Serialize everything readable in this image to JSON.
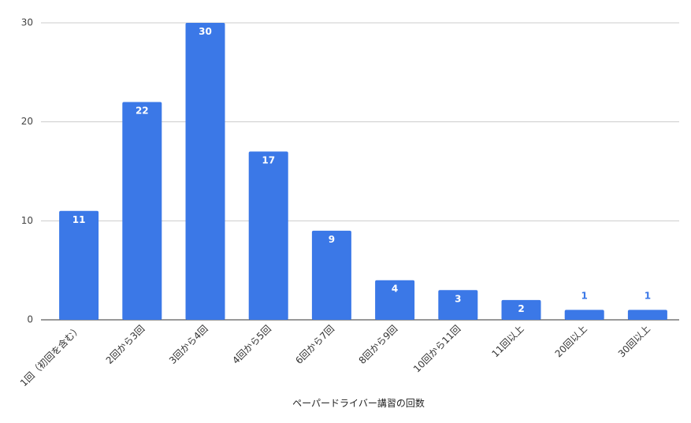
{
  "chart_data": {
    "type": "bar",
    "categories": [
      "1回（初回を含む）",
      "2回から3回",
      "3回から4回",
      "4回から5回",
      "6回から7回",
      "8回から9回",
      "10回から11回",
      "11回以上",
      "20回以上",
      "30回以上"
    ],
    "values": [
      11,
      22,
      30,
      17,
      9,
      4,
      3,
      2,
      1,
      1
    ],
    "data_labels": [
      "11",
      "22",
      "30",
      "17",
      "9",
      "4",
      "3",
      "2",
      "1",
      "1"
    ],
    "title": "",
    "xlabel": "ペーパードライバー講習の回数",
    "ylabel": "",
    "ylim": [
      0,
      30
    ],
    "yticks": [
      0,
      10,
      20,
      30
    ],
    "ytick_labels": [
      "0",
      "10",
      "20",
      "30"
    ],
    "grid": true,
    "bar_color": "#3b78e7",
    "legend": "none"
  }
}
